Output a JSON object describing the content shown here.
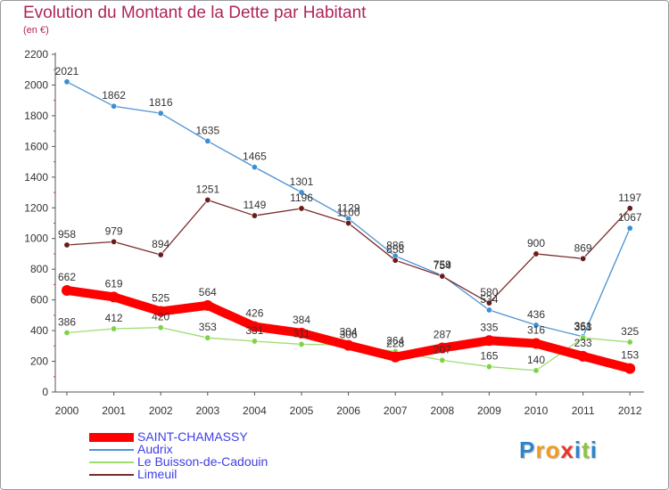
{
  "header": {
    "title": "Evolution du Montant de la Dette par Habitant",
    "subtitle": "(en €)"
  },
  "colors": {
    "title": "#b0245a",
    "legend_text": "#3f3fe6",
    "axis": "#555555"
  },
  "logo": {
    "text": "Proxiti",
    "letter_colors": [
      "#2e84c9",
      "#f29b1d",
      "#f29b1d",
      "#e8352a",
      "#2e84c9",
      "#8cc63f",
      "#2e84c9"
    ]
  },
  "chart_data": {
    "type": "line",
    "title": "Evolution du Montant de la Dette par Habitant",
    "subtitle": "(en €)",
    "xlabel": "",
    "ylabel": "",
    "ylim": [
      0,
      2200
    ],
    "yticks": [
      0,
      200,
      400,
      600,
      800,
      1000,
      1200,
      1400,
      1600,
      1800,
      2000,
      2200
    ],
    "grid": false,
    "legend_position": "bottom-left",
    "categories": [
      "2000",
      "2001",
      "2002",
      "2003",
      "2004",
      "2005",
      "2006",
      "2007",
      "2008",
      "2009",
      "2010",
      "2011",
      "2012"
    ],
    "series": [
      {
        "name": "SAINT-CHAMASSY",
        "color": "#ff0000",
        "emphasis": true,
        "values": [
          662,
          619,
          525,
          564,
          426,
          384,
          304,
          228,
          287,
          335,
          316,
          233,
          153
        ]
      },
      {
        "name": "Audrix",
        "color": "#4f93d2",
        "point_color": "#3a8fd6",
        "values": [
          2021,
          1862,
          1816,
          1635,
          1465,
          1301,
          1129,
          886,
          759,
          534,
          436,
          361,
          1067
        ]
      },
      {
        "name": "Le Buisson-de-Cadouin",
        "color": "#9edc6e",
        "point_color": "#7ed348",
        "values": [
          386,
          412,
          420,
          353,
          331,
          311,
          306,
          264,
          207,
          165,
          140,
          353,
          325
        ]
      },
      {
        "name": "Limeuil",
        "color": "#7a2b2b",
        "point_color": "#6b1a1a",
        "values": [
          958,
          979,
          894,
          1251,
          1149,
          1196,
          1100,
          858,
          754,
          580,
          900,
          869,
          1197
        ]
      }
    ]
  }
}
